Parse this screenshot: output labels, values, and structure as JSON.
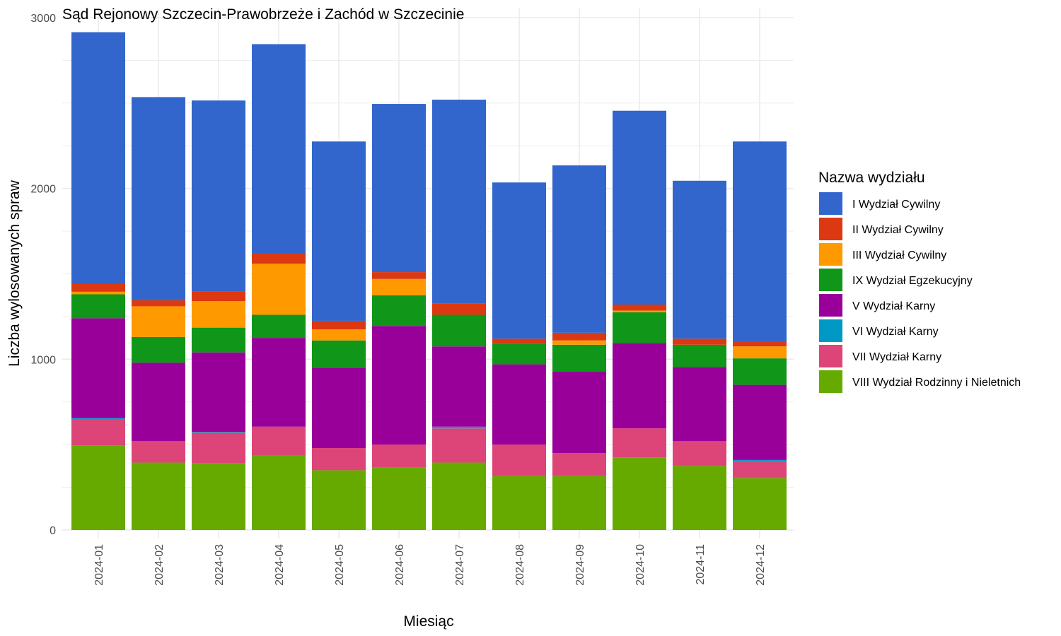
{
  "chart_data": {
    "type": "bar",
    "stacked": true,
    "title": "Sąd Rejonowy Szczecin-Prawobrzeże i Zachód w Szczecinie",
    "xlabel": "Miesiąc",
    "ylabel": "Liczba wylosowanych spraw",
    "ylim": [
      0,
      3000
    ],
    "yticks": [
      "0",
      "1000",
      "2000",
      "3000"
    ],
    "grid": true,
    "legend_title": "Nazwa wydziału",
    "legend_position": "right",
    "categories": [
      "2024-01",
      "2024-02",
      "2024-03",
      "2024-04",
      "2024-05",
      "2024-06",
      "2024-07",
      "2024-08",
      "2024-09",
      "2024-10",
      "2024-11",
      "2024-12"
    ],
    "series": [
      {
        "name": "VIII Wydział Rodzinny i Nieletnich",
        "color": "#66aa00",
        "values": [
          495,
          395,
          390,
          435,
          350,
          365,
          395,
          315,
          315,
          425,
          375,
          305
        ]
      },
      {
        "name": "VII Wydział Karny",
        "color": "#dd4477",
        "values": [
          155,
          125,
          180,
          170,
          130,
          135,
          200,
          185,
          135,
          170,
          145,
          95
        ]
      },
      {
        "name": "VI Wydział Karny",
        "color": "#0099c6",
        "values": [
          5,
          0,
          5,
          0,
          0,
          0,
          10,
          0,
          0,
          0,
          0,
          10
        ]
      },
      {
        "name": "V Wydział Karny",
        "color": "#990099",
        "values": [
          585,
          460,
          465,
          520,
          470,
          695,
          470,
          470,
          480,
          500,
          435,
          440
        ]
      },
      {
        "name": "IX Wydział Egzekucyjny",
        "color": "#109618",
        "values": [
          140,
          150,
          145,
          135,
          160,
          180,
          185,
          120,
          155,
          180,
          130,
          155
        ]
      },
      {
        "name": "III Wydział Cywilny",
        "color": "#ff9900",
        "values": [
          15,
          180,
          155,
          300,
          65,
          95,
          0,
          0,
          25,
          10,
          0,
          70
        ]
      },
      {
        "name": "II Wydział Cywilny",
        "color": "#dc3912",
        "values": [
          45,
          35,
          55,
          60,
          50,
          40,
          65,
          30,
          45,
          35,
          35,
          30
        ]
      },
      {
        "name": "I Wydział Cywilny",
        "color": "#3366cc",
        "values": [
          1475,
          1190,
          1120,
          1225,
          1050,
          985,
          1195,
          915,
          980,
          1135,
          925,
          1170
        ]
      }
    ],
    "legend_order": [
      "I Wydział Cywilny",
      "II Wydział Cywilny",
      "III Wydział Cywilny",
      "IX Wydział Egzekucyjny",
      "V Wydział Karny",
      "VI Wydział Karny",
      "VII Wydział Karny",
      "VIII Wydział Rodzinny i Nieletnich"
    ]
  }
}
